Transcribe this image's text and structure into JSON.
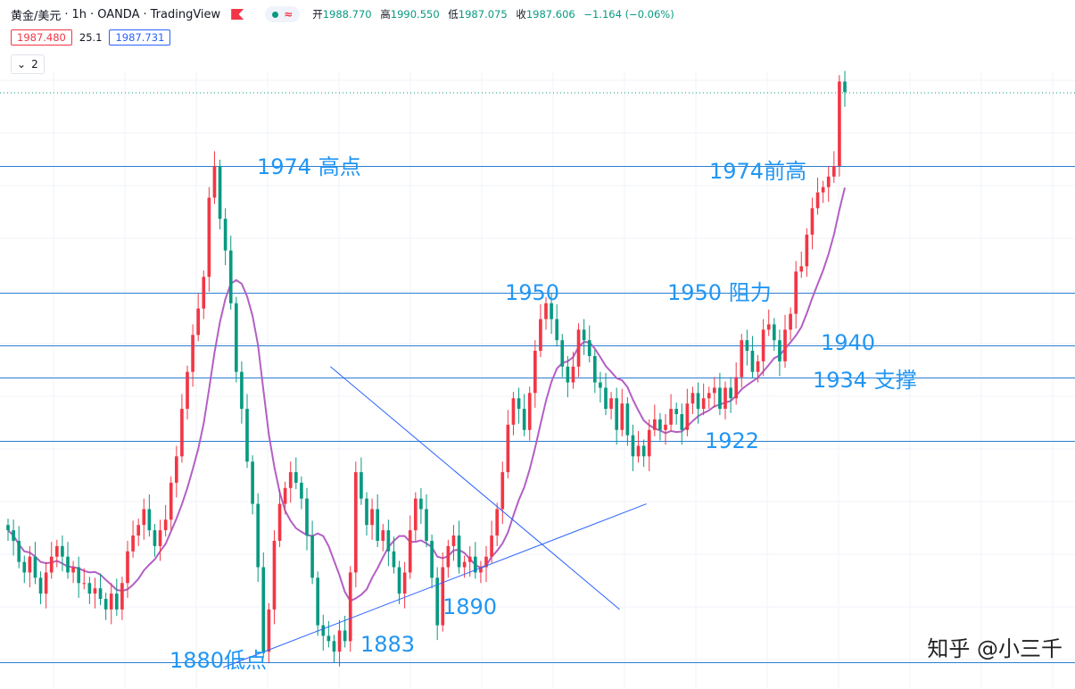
{
  "header": {
    "symbol": "黄金/美元",
    "interval": "1h",
    "broker": "OANDA",
    "platform": "TradingView",
    "pill_icon": "wave-icon",
    "ohlc": {
      "open_label": "开",
      "open": "1988.770",
      "high_label": "高",
      "high": "1990.550",
      "low_label": "低",
      "low": "1987.075",
      "close_label": "收",
      "close": "1987.606",
      "change": "−1.164 (−0.06%)"
    },
    "bid": "1987.480",
    "spread": "25.1",
    "ask": "1987.731",
    "indicators_count": "2"
  },
  "watermark": "知乎 @小三千",
  "colors": {
    "up": "#f23645",
    "down": "#089981",
    "ma": "#b35fc4",
    "hline": "#2a7ed1",
    "trendline": "#2962ff",
    "annotation": "#2196f3"
  },
  "chart_data": {
    "type": "candlestick",
    "symbol": "XAU/USD",
    "interval": "1h",
    "y_range": [
      1879,
      1995
    ],
    "horizontal_levels": [
      1974,
      1950,
      1940,
      1934,
      1922,
      1880
    ],
    "annotations": [
      {
        "text": "1974 高点",
        "price": 1974
      },
      {
        "text": "1974前高",
        "price": 1974
      },
      {
        "text": "1950",
        "price": 1950
      },
      {
        "text": "1950 阻力",
        "price": 1950
      },
      {
        "text": "1940",
        "price": 1940
      },
      {
        "text": "1934 支撑",
        "price": 1934
      },
      {
        "text": "1922",
        "price": 1922
      },
      {
        "text": "1890",
        "price": 1890
      },
      {
        "text": "1883",
        "price": 1883
      },
      {
        "text": "1880低点",
        "price": 1880
      }
    ],
    "trendlines": [
      {
        "name": "descending-resistance",
        "from": [
          0.305,
          1936
        ],
        "to": [
          0.575,
          1890
        ]
      },
      {
        "name": "ascending-support",
        "from": [
          0.205,
          1879
        ],
        "to": [
          0.6,
          1910
        ]
      }
    ],
    "close": [
      1905,
      1903,
      1899,
      1897,
      1900,
      1896,
      1893,
      1897,
      1900,
      1902,
      1900,
      1897,
      1898,
      1895,
      1895,
      1893,
      1894,
      1892,
      1890,
      1893,
      1890,
      1895,
      1901,
      1904,
      1906,
      1909,
      1905,
      1902,
      1905,
      1907,
      1914,
      1919,
      1928,
      1935,
      1942,
      1947,
      1953,
      1968,
      1974,
      1964,
      1958,
      1948,
      1935,
      1928,
      1918,
      1910,
      1898,
      1882,
      1890,
      1903,
      1910,
      1913,
      1916,
      1914,
      1911,
      1904,
      1896,
      1887,
      1885,
      1884,
      1882,
      1886,
      1884,
      1897,
      1916,
      1911,
      1906,
      1909,
      1903,
      1905,
      1901,
      1898,
      1893,
      1897,
      1905,
      1911,
      1909,
      1903,
      1896,
      1887,
      1898,
      1902,
      1904,
      1898,
      1899,
      1900,
      1897,
      1898,
      1900,
      1904,
      1909,
      1916,
      1925,
      1930,
      1928,
      1924,
      1931,
      1939,
      1945,
      1948,
      1945,
      1941,
      1936,
      1933,
      1936,
      1943,
      1941,
      1938,
      1933,
      1932,
      1928,
      1930,
      1924,
      1929,
      1923,
      1919,
      1921,
      1919,
      1924,
      1926,
      1924,
      1925,
      1928,
      1927,
      1924,
      1929,
      1931,
      1928,
      1930,
      1931,
      1932,
      1928,
      1932,
      1930,
      1934,
      1941,
      1939,
      1935,
      1937,
      1943,
      1944,
      1941,
      1937,
      1943,
      1946,
      1954,
      1955,
      1961,
      1966,
      1969,
      1970,
      1972,
      1974,
      1990,
      1988
    ]
  }
}
